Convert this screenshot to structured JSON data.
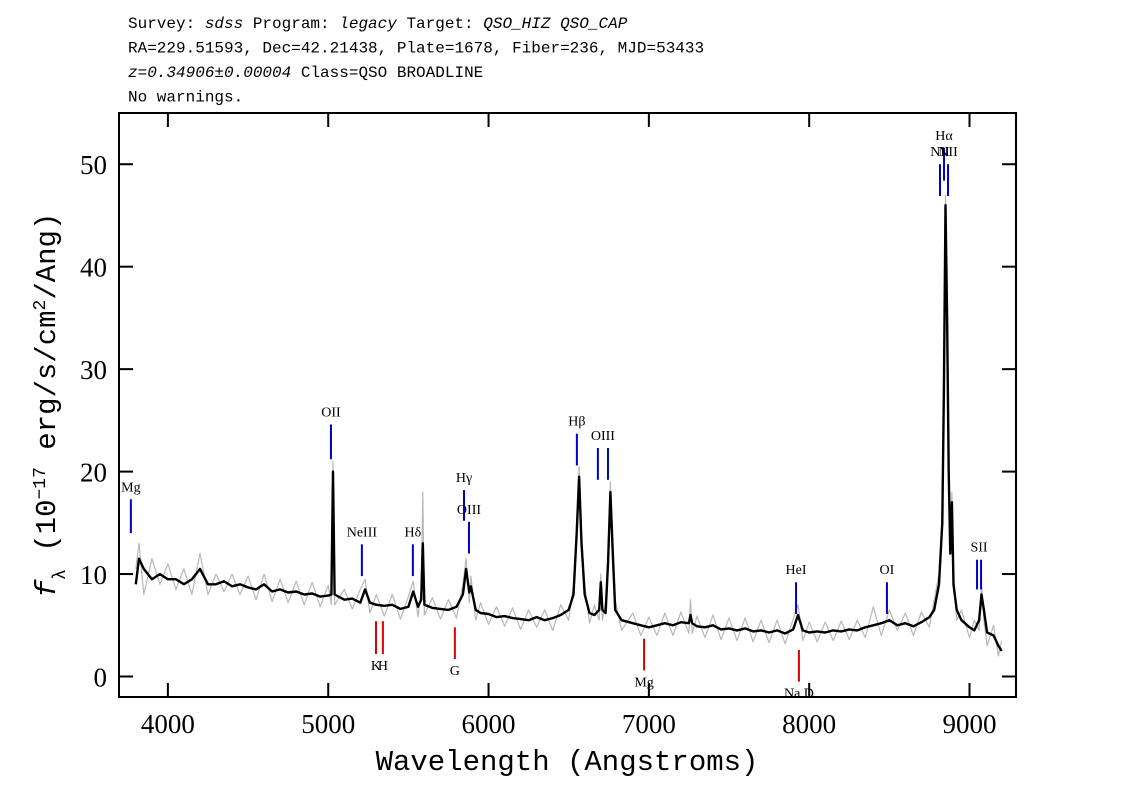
{
  "chart_data": {
    "type": "line",
    "header": [
      [
        {
          "text": "Survey: "
        },
        {
          "text": "sdss",
          "italic": true
        },
        {
          "text": " Program: "
        },
        {
          "text": "legacy",
          "italic": true
        },
        {
          "text": " Target: "
        },
        {
          "text": "QSO_HIZ QSO_CAP",
          "italic": true
        }
      ],
      [
        {
          "text": "RA=229.51593, Dec=42.21438, Plate=1678, Fiber=236, MJD=53433"
        }
      ],
      [
        {
          "text": "z=0.34906±0.00004",
          "italic": true
        },
        {
          "text": " Class=QSO BROADLINE"
        }
      ],
      [
        {
          "text": "No warnings."
        }
      ]
    ],
    "x_label": "Wavelength (Angstroms)",
    "y_label": [
      {
        "text": "f",
        "style": "italic"
      },
      {
        "text": "λ",
        "style": "sub"
      },
      {
        "text": " (10"
      },
      {
        "text": "−17",
        "style": "sup"
      },
      {
        "text": " erg/s/cm"
      },
      {
        "text": "2",
        "style": "sup"
      },
      {
        "text": "/Ang)"
      }
    ],
    "xlim": [
      3695,
      9290
    ],
    "ylim": [
      -2,
      55
    ],
    "xticks": [
      4000,
      5000,
      6000,
      7000,
      8000,
      9000
    ],
    "yticks": [
      0,
      10,
      20,
      30,
      40,
      50
    ],
    "x": [
      3800,
      3820,
      3850,
      3900,
      3950,
      4000,
      4050,
      4100,
      4150,
      4200,
      4250,
      4300,
      4350,
      4400,
      4450,
      4500,
      4550,
      4600,
      4650,
      4700,
      4750,
      4800,
      4850,
      4900,
      4950,
      5000,
      5020,
      5030,
      5040,
      5100,
      5150,
      5200,
      5230,
      5260,
      5300,
      5350,
      5400,
      5450,
      5500,
      5530,
      5560,
      5580,
      5590,
      5600,
      5650,
      5700,
      5750,
      5800,
      5840,
      5860,
      5880,
      5890,
      5920,
      5950,
      6000,
      6050,
      6100,
      6150,
      6200,
      6250,
      6300,
      6350,
      6400,
      6450,
      6500,
      6530,
      6550,
      6565,
      6580,
      6600,
      6630,
      6660,
      6690,
      6700,
      6710,
      6730,
      6745,
      6760,
      6775,
      6790,
      6830,
      6900,
      6950,
      7000,
      7050,
      7100,
      7150,
      7200,
      7250,
      7260,
      7270,
      7300,
      7350,
      7400,
      7450,
      7500,
      7550,
      7600,
      7650,
      7700,
      7750,
      7800,
      7850,
      7900,
      7930,
      7960,
      8000,
      8050,
      8100,
      8150,
      8200,
      8250,
      8300,
      8350,
      8400,
      8450,
      8500,
      8550,
      8600,
      8650,
      8700,
      8750,
      8780,
      8810,
      8830,
      8840,
      8850,
      8860,
      8870,
      8880,
      8890,
      8900,
      8920,
      8950,
      9000,
      9030,
      9060,
      9075,
      9090,
      9110,
      9150,
      9180,
      9200
    ],
    "series": [
      {
        "color": "#b8b8b8",
        "values": [
          10.5,
          13,
          8,
          11.5,
          9,
          11,
          8.5,
          10.5,
          8,
          12,
          8,
          10,
          8.3,
          10,
          8,
          9.8,
          7.5,
          10,
          7.3,
          9.5,
          7.2,
          9.3,
          7,
          9.2,
          6.8,
          8.9,
          7,
          21,
          7,
          8.5,
          6.6,
          8.5,
          9.5,
          6.2,
          8,
          5.9,
          8,
          5.6,
          7.8,
          9.3,
          5.8,
          8.5,
          18,
          6,
          7.7,
          5.6,
          7.5,
          5.7,
          9,
          11.5,
          7.2,
          9.8,
          5.5,
          7.2,
          5.1,
          6.8,
          4.9,
          6.7,
          4.6,
          6.5,
          4.8,
          6.5,
          4.5,
          7,
          5.5,
          9,
          15,
          20.5,
          14,
          9,
          5.2,
          7,
          5.5,
          10,
          5.5,
          7.2,
          12,
          19,
          13,
          7.5,
          4.5,
          6.2,
          4,
          5.8,
          4,
          6.2,
          4,
          6.3,
          4.2,
          7.5,
          4.2,
          5.9,
          3.8,
          6,
          3.6,
          5.7,
          3.5,
          5.7,
          3.4,
          5.5,
          3.3,
          5.5,
          3.2,
          5.6,
          7,
          3.5,
          5.3,
          3.4,
          5.3,
          3.5,
          5.4,
          3.6,
          5.5,
          3.8,
          6.8,
          4,
          6.5,
          4.5,
          6.2,
          4,
          6.3,
          4.8,
          7.5,
          10,
          16,
          29,
          47,
          36,
          21,
          13,
          18,
          10,
          5.5,
          6.5,
          3.8,
          5.5,
          4.5,
          9,
          5.5,
          3,
          5,
          2,
          3.5
        ]
      },
      {
        "color": "#000000",
        "values": [
          9,
          11.5,
          10.5,
          9.5,
          10,
          9.5,
          9.5,
          9,
          9.5,
          10.5,
          9,
          9,
          9.3,
          8.8,
          9,
          8.7,
          8.5,
          9,
          8.3,
          8.5,
          8.2,
          8.3,
          8,
          8.1,
          7.8,
          7.9,
          8,
          20,
          8,
          7.5,
          7.6,
          7.2,
          8.5,
          7.2,
          7,
          6.9,
          7,
          6.6,
          6.8,
          8.3,
          6.8,
          7.5,
          13,
          7,
          6.7,
          6.6,
          6.5,
          6.8,
          8,
          10.5,
          8.2,
          8.8,
          6.5,
          6.2,
          6.1,
          5.8,
          5.9,
          5.7,
          5.6,
          5.5,
          5.8,
          5.5,
          5.7,
          6,
          6.5,
          8,
          14,
          19.5,
          13,
          8,
          6.2,
          6,
          6.5,
          9.2,
          6.5,
          6.2,
          11,
          18,
          12,
          6.5,
          5.5,
          5.2,
          5,
          4.8,
          5,
          5.2,
          5,
          5.3,
          5.2,
          6,
          5.2,
          4.9,
          4.8,
          5,
          4.6,
          4.7,
          4.5,
          4.7,
          4.4,
          4.5,
          4.3,
          4.5,
          4.2,
          4.6,
          6,
          4.5,
          4.3,
          4.4,
          4.3,
          4.5,
          4.4,
          4.6,
          4.5,
          4.8,
          5,
          5.2,
          5.5,
          5,
          5.2,
          4.9,
          5.3,
          5.8,
          6.5,
          9,
          15,
          28,
          46,
          35,
          20,
          12,
          17,
          9,
          6.5,
          5.5,
          4.8,
          4.5,
          5.5,
          8,
          6.5,
          4.3,
          4,
          3,
          2.5
        ]
      }
    ],
    "annotations": [
      {
        "label": "Mg",
        "x": [
          3769
        ],
        "y": [
          14.0,
          17.3
        ],
        "color": "#0000cc"
      },
      {
        "label": "OII",
        "x": [
          5017
        ],
        "y": [
          21.2,
          24.6
        ],
        "color": "#0000cc"
      },
      {
        "label": "NeIII",
        "x": [
          5210
        ],
        "y": [
          9.8,
          12.9
        ],
        "color": "#0000cc"
      },
      {
        "label": "Hδ",
        "x": [
          5528
        ],
        "y": [
          9.8,
          12.9
        ],
        "color": "#0000cc"
      },
      {
        "label": "Hγ",
        "x": [
          5847
        ],
        "y": [
          15.2,
          18.2
        ],
        "color": "#0000cc"
      },
      {
        "label": "OIII",
        "x": [
          5878
        ],
        "y": [
          12.0,
          15.1
        ],
        "color": "#0000cc"
      },
      {
        "label": "Hβ",
        "x": [
          6551
        ],
        "y": [
          20.6,
          23.7
        ],
        "color": "#0000cc"
      },
      {
        "label": "OIII",
        "x": [
          6682,
          6745
        ],
        "y": [
          19.2,
          22.3
        ],
        "color": "#0000cc"
      },
      {
        "label": "HeI",
        "x": [
          7918
        ],
        "y": [
          6.1,
          9.2
        ],
        "color": "#0000cc"
      },
      {
        "label": "OI",
        "x": [
          8485
        ],
        "y": [
          6.1,
          9.2
        ],
        "color": "#0000cc"
      },
      {
        "label": "NII",
        "x": [
          8816
        ],
        "y": [
          46.9,
          50.0
        ],
        "color": "#0000cc"
      },
      {
        "label": "Hα",
        "x": [
          8841
        ],
        "y": [
          48.4,
          51.6
        ],
        "color": "#0000cc"
      },
      {
        "label": "NII",
        "x": [
          8866
        ],
        "y": [
          46.9,
          50.0
        ],
        "color": "#0000cc"
      },
      {
        "label": "SII",
        "x": [
          9047,
          9072
        ],
        "y": [
          8.5,
          11.4
        ],
        "color": "#0000cc"
      },
      {
        "label": "K",
        "x": [
          5298
        ],
        "y": [
          2.2,
          5.4
        ],
        "color": "#dd0000"
      },
      {
        "label": "H",
        "x": [
          5341
        ],
        "y": [
          2.2,
          5.4
        ],
        "color": "#dd0000"
      },
      {
        "label": "G",
        "x": [
          5790
        ],
        "y": [
          1.7,
          4.8
        ],
        "color": "#dd0000"
      },
      {
        "label": "Mg",
        "x": [
          6970
        ],
        "y": [
          0.6,
          3.7
        ],
        "color": "#dd0000"
      },
      {
        "label": "Na D",
        "x": [
          7936
        ],
        "y": [
          -0.5,
          2.6
        ],
        "color": "#dd0000"
      }
    ]
  }
}
